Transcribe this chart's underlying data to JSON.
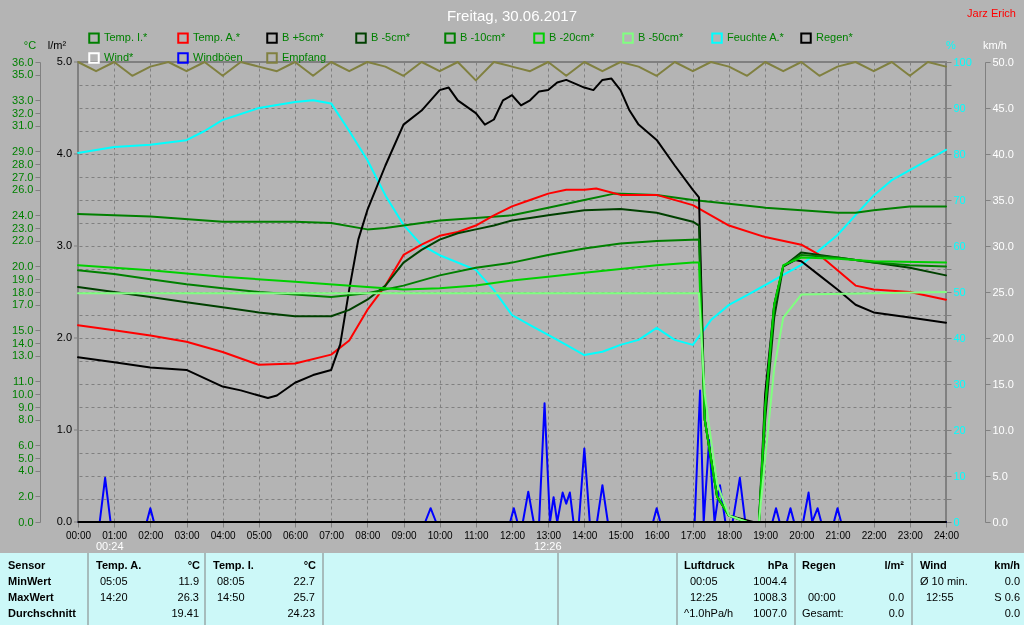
{
  "chart_data": {
    "type": "line",
    "title": "Freitag, 30.06.2017",
    "ylabel": "°C",
    "y2label": "%",
    "y3label": "km/h",
    "xlim": [
      0,
      24
    ],
    "xticks": [
      {
        "value": 0,
        "label": "00:00"
      },
      {
        "value": 1,
        "label": "01:00"
      },
      {
        "value": 2,
        "label": "02:00"
      },
      {
        "value": 3,
        "label": "03:00"
      },
      {
        "value": 4,
        "label": "04:00"
      },
      {
        "value": 5,
        "label": "05:00"
      },
      {
        "value": 6,
        "label": "06:00"
      },
      {
        "value": 7,
        "label": "07:00"
      },
      {
        "value": 8,
        "label": "08:00"
      },
      {
        "value": 9,
        "label": "09:00"
      },
      {
        "value": 10,
        "label": "10:00"
      },
      {
        "value": 11,
        "label": "11:00"
      },
      {
        "value": 12,
        "label": "12:00"
      },
      {
        "value": 13,
        "label": "13:00"
      },
      {
        "value": 14,
        "label": "14:00"
      },
      {
        "value": 15,
        "label": "15:00"
      },
      {
        "value": 16,
        "label": "16:00"
      },
      {
        "value": 17,
        "label": "17:00"
      },
      {
        "value": 18,
        "label": "18:00"
      },
      {
        "value": 19,
        "label": "19:00"
      },
      {
        "value": 20,
        "label": "20:00"
      },
      {
        "value": 21,
        "label": "21:00"
      },
      {
        "value": 22,
        "label": "22:00"
      },
      {
        "value": 23,
        "label": "23:00"
      },
      {
        "value": 24,
        "label": "24:00"
      }
    ],
    "ylim": [
      0,
      36
    ],
    "yticks": [
      {
        "value": 0,
        "label": "0.0"
      },
      {
        "value": 2,
        "label": "2.0"
      },
      {
        "value": 4,
        "label": "4.0"
      },
      {
        "value": 5,
        "label": "5.0"
      },
      {
        "value": 6,
        "label": "6.0"
      },
      {
        "value": 8,
        "label": "8.0"
      },
      {
        "value": 9,
        "label": "9.0"
      },
      {
        "value": 10,
        "label": "10.0"
      },
      {
        "value": 11,
        "label": "11.0"
      },
      {
        "value": 13,
        "label": "13.0"
      },
      {
        "value": 14,
        "label": "14.0"
      },
      {
        "value": 15,
        "label": "15.0"
      },
      {
        "value": 17,
        "label": "17.0"
      },
      {
        "value": 18,
        "label": "18.0"
      },
      {
        "value": 19,
        "label": "19.0"
      },
      {
        "value": 20,
        "label": "20.0"
      },
      {
        "value": 22,
        "label": "22.0"
      },
      {
        "value": 23,
        "label": "23.0"
      },
      {
        "value": 24,
        "label": "24.0"
      },
      {
        "value": 26,
        "label": "26.0"
      },
      {
        "value": 27,
        "label": "27.0"
      },
      {
        "value": 28,
        "label": "28.0"
      },
      {
        "value": 29,
        "label": "29.0"
      },
      {
        "value": 31,
        "label": "31.0"
      },
      {
        "value": 32,
        "label": "32.0"
      },
      {
        "value": 33,
        "label": "33.0"
      },
      {
        "value": 35,
        "label": "35.0"
      },
      {
        "value": 36,
        "label": "36.0"
      }
    ],
    "y2lim": [
      0,
      100
    ],
    "y2ticks": [
      0,
      {
        "value": 5,
        "label": null
      },
      10,
      {
        "value": 15,
        "label": null
      },
      20,
      {
        "value": 25,
        "label": null
      },
      30,
      {
        "value": 35,
        "label": null
      },
      40,
      {
        "value": 45,
        "label": null
      },
      50,
      {
        "value": 55,
        "label": null
      },
      60,
      {
        "value": 65,
        "label": null
      },
      70,
      {
        "value": 75,
        "label": null
      },
      80,
      {
        "value": 85,
        "label": null
      },
      90,
      {
        "value": 95,
        "label": null
      },
      100
    ],
    "y3lim": [
      0,
      50
    ],
    "y3ticks": [
      {
        "value": 0,
        "label": "0.0"
      },
      {
        "value": 5,
        "label": "5.0"
      },
      {
        "value": 10,
        "label": "10.0"
      },
      {
        "value": 15,
        "label": "15.0"
      },
      {
        "value": 20,
        "label": "20.0"
      },
      {
        "value": 25,
        "label": "25.0"
      },
      {
        "value": 30,
        "label": "30.0"
      },
      {
        "value": 35,
        "label": "35.0"
      },
      {
        "value": 40,
        "label": "40.0"
      },
      {
        "value": 45,
        "label": "45.0"
      },
      {
        "value": 50,
        "label": "50.0"
      }
    ],
    "grid": true,
    "legend": "top",
    "marker": "none",
    "line_style": "solid",
    "series": [
      {
        "name": "Temp. I.*",
        "color": "#008000",
        "axis": "y",
        "x": [
          0,
          2,
          4,
          6,
          7,
          8,
          8.5,
          9,
          10,
          11,
          12,
          13,
          14,
          14.83,
          16,
          17,
          18,
          19,
          20,
          21,
          21.5,
          22,
          23,
          24
        ],
        "values": [
          24.1,
          23.9,
          23.5,
          23.5,
          23.4,
          22.9,
          23.0,
          23.2,
          23.6,
          23.8,
          24.0,
          24.6,
          25.2,
          25.7,
          25.6,
          25.2,
          24.9,
          24.6,
          24.4,
          24.2,
          24.2,
          24.4,
          24.7,
          24.7
        ]
      },
      {
        "name": "Temp. A.*",
        "color": "#ff0000",
        "axis": "y",
        "x": [
          0,
          1,
          2,
          3,
          4,
          5,
          6,
          7,
          7.5,
          8,
          8.5,
          9,
          9.5,
          10,
          10.5,
          11,
          11.5,
          12,
          12.5,
          13,
          13.5,
          14,
          14.33,
          15,
          16,
          17,
          18,
          19,
          20,
          20.5,
          21,
          21.5,
          22,
          23,
          24
        ],
        "values": [
          15.4,
          15.0,
          14.6,
          14.1,
          13.3,
          12.3,
          12.4,
          13.1,
          14.2,
          16.6,
          18.5,
          20.9,
          21.7,
          22.4,
          22.7,
          23.2,
          24.0,
          24.7,
          25.2,
          25.7,
          26.0,
          26.0,
          26.1,
          25.6,
          25.6,
          24.8,
          23.2,
          22.3,
          21.7,
          20.9,
          19.7,
          18.5,
          18.2,
          18.0,
          17.4
        ]
      },
      {
        "name": "B +5cm*",
        "color": "#000000",
        "axis": "y",
        "x": [
          0,
          1,
          2,
          3,
          4,
          4.5,
          5,
          5.25,
          5.5,
          6,
          6.5,
          7,
          7.25,
          7.5,
          7.75,
          8,
          8.5,
          9,
          9.5,
          10,
          10.25,
          10.5,
          11,
          11.25,
          11.5,
          11.75,
          12,
          12.25,
          12.5,
          12.75,
          13,
          13.25,
          13.5,
          14,
          14.25,
          14.5,
          14.75,
          15,
          15.25,
          15.5,
          16,
          16.5,
          17,
          17.17,
          17.33,
          17.67,
          18,
          18.67,
          18.83,
          19,
          19.25,
          19.5,
          19.83,
          20,
          20.5,
          21,
          21.5,
          22,
          23,
          24
        ],
        "values": [
          12.9,
          12.5,
          12.1,
          11.9,
          10.6,
          10.3,
          9.9,
          9.7,
          9.9,
          10.9,
          11.5,
          11.9,
          13.9,
          18.2,
          22.1,
          24.4,
          27.9,
          31.1,
          32.2,
          33.8,
          34.0,
          33.0,
          32.0,
          31.1,
          31.5,
          33.0,
          33.4,
          32.6,
          33.0,
          33.7,
          33.8,
          34.4,
          34.6,
          34.0,
          33.8,
          34.6,
          34.7,
          33.8,
          32.2,
          31.1,
          29.9,
          27.9,
          26.0,
          25.4,
          8,
          2,
          0.5,
          0,
          0,
          10,
          17,
          20,
          20.5,
          20.4,
          19.3,
          18.2,
          17.0,
          16.4,
          16.0,
          15.6
        ]
      },
      {
        "name": "B -5cm*",
        "color": "#004000",
        "axis": "y",
        "x": [
          0,
          1,
          2,
          3,
          4,
          5,
          6,
          7,
          7.5,
          8,
          8.5,
          9,
          9.5,
          10,
          10.5,
          11,
          11.5,
          12,
          12.5,
          13,
          14,
          15,
          16,
          17,
          17.17,
          17.33,
          17.67,
          18,
          18.5,
          18.83,
          19,
          19.25,
          19.5,
          20,
          21,
          22,
          23,
          24
        ],
        "values": [
          18.4,
          18.0,
          17.6,
          17.2,
          16.8,
          16.4,
          16.1,
          16.1,
          16.6,
          17.4,
          18.5,
          20.3,
          21.3,
          22.1,
          22.6,
          22.9,
          23.2,
          23.6,
          23.8,
          24.0,
          24.4,
          24.5,
          24.2,
          23.5,
          23.2,
          8,
          2,
          0.5,
          0,
          0,
          8,
          16,
          20,
          21.1,
          20.7,
          20.3,
          19.9,
          19.3
        ]
      },
      {
        "name": "B -10cm*",
        "color": "#008000",
        "axis": "y",
        "x": [
          0,
          1,
          2,
          3,
          4,
          5,
          6,
          7,
          8,
          9,
          10,
          11,
          12,
          13,
          14,
          15,
          16,
          17.17,
          17.33,
          17.67,
          18,
          18.5,
          18.83,
          19,
          19.25,
          19.5,
          20,
          21,
          22,
          23,
          24
        ],
        "values": [
          19.7,
          19.4,
          19.0,
          18.6,
          18.3,
          18.0,
          17.8,
          17.6,
          17.9,
          18.5,
          19.3,
          19.9,
          20.3,
          20.9,
          21.4,
          21.8,
          22.0,
          22.1,
          8,
          2,
          0.5,
          0,
          0,
          9,
          17,
          20,
          20.9,
          20.7,
          20.3,
          20.1,
          20.0
        ]
      },
      {
        "name": "B -20cm*",
        "color": "#00d000",
        "axis": "y",
        "x": [
          0,
          2,
          4,
          6,
          8,
          9,
          10,
          11,
          12,
          13,
          14,
          15,
          16,
          17,
          17.17,
          17.33,
          17.67,
          18,
          18.5,
          18.83,
          19,
          19.25,
          19.5,
          20,
          21,
          22,
          24
        ],
        "values": [
          20.1,
          19.7,
          19.2,
          18.8,
          18.4,
          18.2,
          18.3,
          18.5,
          18.9,
          19.2,
          19.5,
          19.8,
          20.1,
          20.3,
          20.3,
          8,
          2,
          0.5,
          0,
          0,
          9,
          17,
          20.1,
          20.7,
          20.6,
          20.4,
          20.3
        ]
      },
      {
        "name": "B -50cm*",
        "color": "#80ff80",
        "axis": "y",
        "x": [
          0,
          17.17,
          17.33,
          17.67,
          18,
          18.5,
          18.83,
          19,
          19.25,
          19.5,
          20,
          24
        ],
        "values": [
          17.9,
          17.9,
          10,
          3,
          0.5,
          0,
          0,
          5,
          12,
          16,
          17.8,
          18.0
        ]
      },
      {
        "name": "Feuchte A.*",
        "color": "#00ffff",
        "axis": "y2",
        "x": [
          0,
          1,
          2,
          3,
          3.5,
          4,
          5,
          6,
          6.5,
          7,
          7.5,
          8,
          8.5,
          9,
          9.5,
          10,
          11,
          11.5,
          12,
          12.5,
          13,
          13.5,
          14,
          14.5,
          15,
          15.5,
          16,
          16.5,
          17,
          17.5,
          18,
          18.5,
          19,
          19.5,
          20,
          20.5,
          21,
          21.5,
          22,
          22.5,
          23,
          24
        ],
        "values": [
          80.2,
          81.5,
          82,
          83,
          85,
          87.4,
          90,
          91.3,
          91.7,
          91,
          85,
          78.7,
          71,
          64.6,
          60.2,
          58,
          54.8,
          50.4,
          45,
          42.8,
          40.7,
          38.5,
          36.3,
          37,
          38.5,
          39.6,
          42.2,
          39.6,
          38.5,
          43.9,
          47.2,
          49.3,
          51.5,
          53.7,
          55.9,
          59.1,
          62.4,
          66.7,
          71,
          74.3,
          76.5,
          80.9
        ]
      },
      {
        "name": "Regen*",
        "color": "#000000",
        "axis": "y",
        "x": [
          0,
          24
        ],
        "values": [
          0,
          0
        ]
      },
      {
        "name": "Wind*",
        "color": "#ffffff",
        "axis": "y3"
      },
      {
        "name": "Windböen",
        "color": "#0000ff",
        "axis": "y3",
        "x": [
          0,
          0.6,
          0.75,
          0.9,
          1.9,
          2.0,
          2.1,
          9.6,
          9.75,
          9.9,
          11.95,
          12.05,
          12.15,
          12.3,
          12.45,
          12.6,
          12.75,
          12.9,
          13.05,
          13.15,
          13.25,
          13.4,
          13.5,
          13.6,
          13.7,
          13.85,
          14.0,
          14.15,
          14.35,
          14.5,
          14.65,
          14.85,
          15.0,
          15.9,
          16.0,
          16.1,
          17.05,
          17.2,
          17.3,
          17.45,
          17.6,
          17.75,
          17.9,
          18.1,
          18.3,
          18.45,
          19.2,
          19.3,
          19.4,
          19.6,
          19.7,
          19.8,
          20.05,
          20.2,
          20.3,
          20.45,
          20.55,
          20.9,
          21.0,
          21.1,
          24
        ],
        "values": [
          0,
          0,
          4.8,
          0,
          0,
          1.5,
          0,
          0,
          1.5,
          0,
          0,
          1.5,
          0,
          0,
          3.3,
          0,
          0,
          12.9,
          0,
          2.7,
          0,
          3.2,
          2.0,
          3.2,
          0,
          0,
          8.0,
          0,
          0,
          4.0,
          0,
          0,
          0,
          0,
          1.5,
          0,
          0,
          14.3,
          0,
          8.9,
          0,
          4.0,
          0,
          0,
          4.8,
          0,
          0,
          1.5,
          0,
          0,
          1.5,
          0,
          0,
          3.2,
          0,
          1.5,
          0,
          0,
          1.5,
          0,
          0
        ]
      },
      {
        "name": "Empfang",
        "color": "#808040",
        "axis": "y2",
        "x": [
          0,
          0.5,
          1,
          1.5,
          2,
          2.5,
          3,
          3.5,
          4,
          4.5,
          5,
          5.5,
          6,
          6.5,
          7,
          7.5,
          8,
          8.5,
          9,
          9.5,
          10,
          10.5,
          11,
          11.5,
          12,
          12.5,
          13,
          13.5,
          14,
          14.5,
          15,
          15.5,
          16,
          16.5,
          17,
          17.5,
          18,
          18.5,
          19,
          19.5,
          20,
          20.5,
          21,
          21.5,
          22,
          22.5,
          23,
          23.5,
          24
        ],
        "values": [
          100,
          98,
          100,
          97,
          99,
          100,
          98,
          100,
          97,
          100,
          99,
          98,
          100,
          97,
          100,
          98,
          100,
          99,
          97,
          100,
          98,
          100,
          96,
          100,
          99,
          98,
          100,
          97,
          100,
          98,
          100,
          99,
          97,
          100,
          98,
          100,
          99,
          97,
          100,
          98,
          100,
          97,
          99,
          100,
          98,
          100,
          97,
          100,
          99
        ]
      }
    ],
    "annotations": [
      "Jarz Erich",
      "00:24",
      "12:26",
      "l/m²",
      "0.0",
      "1.0",
      "2.0",
      "3.0",
      "4.0",
      "5.0",
      "Sensor",
      "Temp. A.",
      "°C",
      "Temp. I.",
      "°C",
      "Luftdruck",
      "hPa",
      "Regen",
      "l/m²",
      "Wind",
      "km/h",
      "MinWert",
      "05:05",
      "11.9",
      "08:05",
      "22.7",
      "00:05",
      "1004.4",
      "Ø 10 min.",
      "0.0",
      "MaxWert",
      "14:20",
      "26.3",
      "14:50",
      "25.7",
      "12:25",
      "1008.3",
      "00:00",
      "0.0",
      "12:55",
      "S 0.6",
      "Durchschnitt",
      "19.41",
      "24.23",
      "^1.0hPa/h",
      "1007.0",
      "Gesamt:",
      "0.0",
      "0.0"
    ]
  }
}
